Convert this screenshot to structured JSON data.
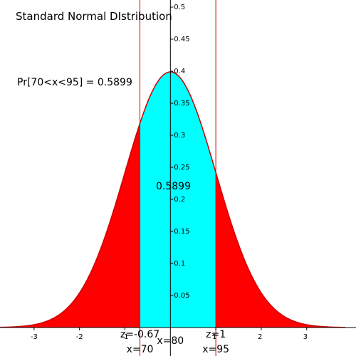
{
  "chart_data": {
    "type": "area",
    "title": "Standard Normal DIstribution",
    "probability_label": "Pr[70<x<95] = 0.5899",
    "area_value_label": "0.5899",
    "xlim": [
      -3.75,
      3.85
    ],
    "ylim": [
      0,
      0.5
    ],
    "x_ticks": [
      -3,
      -2,
      -1,
      1,
      2,
      3
    ],
    "x_tick_labels": [
      "-3",
      "-2",
      "-1",
      "1",
      "2",
      "3"
    ],
    "y_ticks": [
      0.05,
      0.1,
      0.15,
      0.2,
      0.25,
      0.3,
      0.35,
      0.4,
      0.45,
      0.5
    ],
    "y_tick_labels": [
      "0.05",
      "0.1",
      "0.15",
      "0.2",
      "0.25",
      "0.3",
      "0.35",
      "0.4",
      "0.45",
      "0.5"
    ],
    "curve": {
      "name": "standard normal density",
      "mean": 0,
      "sd": 1,
      "color": "#cc0000"
    },
    "shaded_interval": {
      "z_low": -0.67,
      "z_high": 1,
      "probability": 0.5899,
      "color": "#00ffff"
    },
    "tail_color": "#ff0000",
    "boundary_line_color": "#cc0000",
    "markers": [
      {
        "z": -0.67,
        "z_label": "z=-0.67",
        "x_label": "x=70"
      },
      {
        "z": 0,
        "z_label": "",
        "x_label": "x=80"
      },
      {
        "z": 1,
        "z_label": "z=1",
        "x_label": "x=95"
      }
    ],
    "grid": false,
    "legend": "none"
  }
}
